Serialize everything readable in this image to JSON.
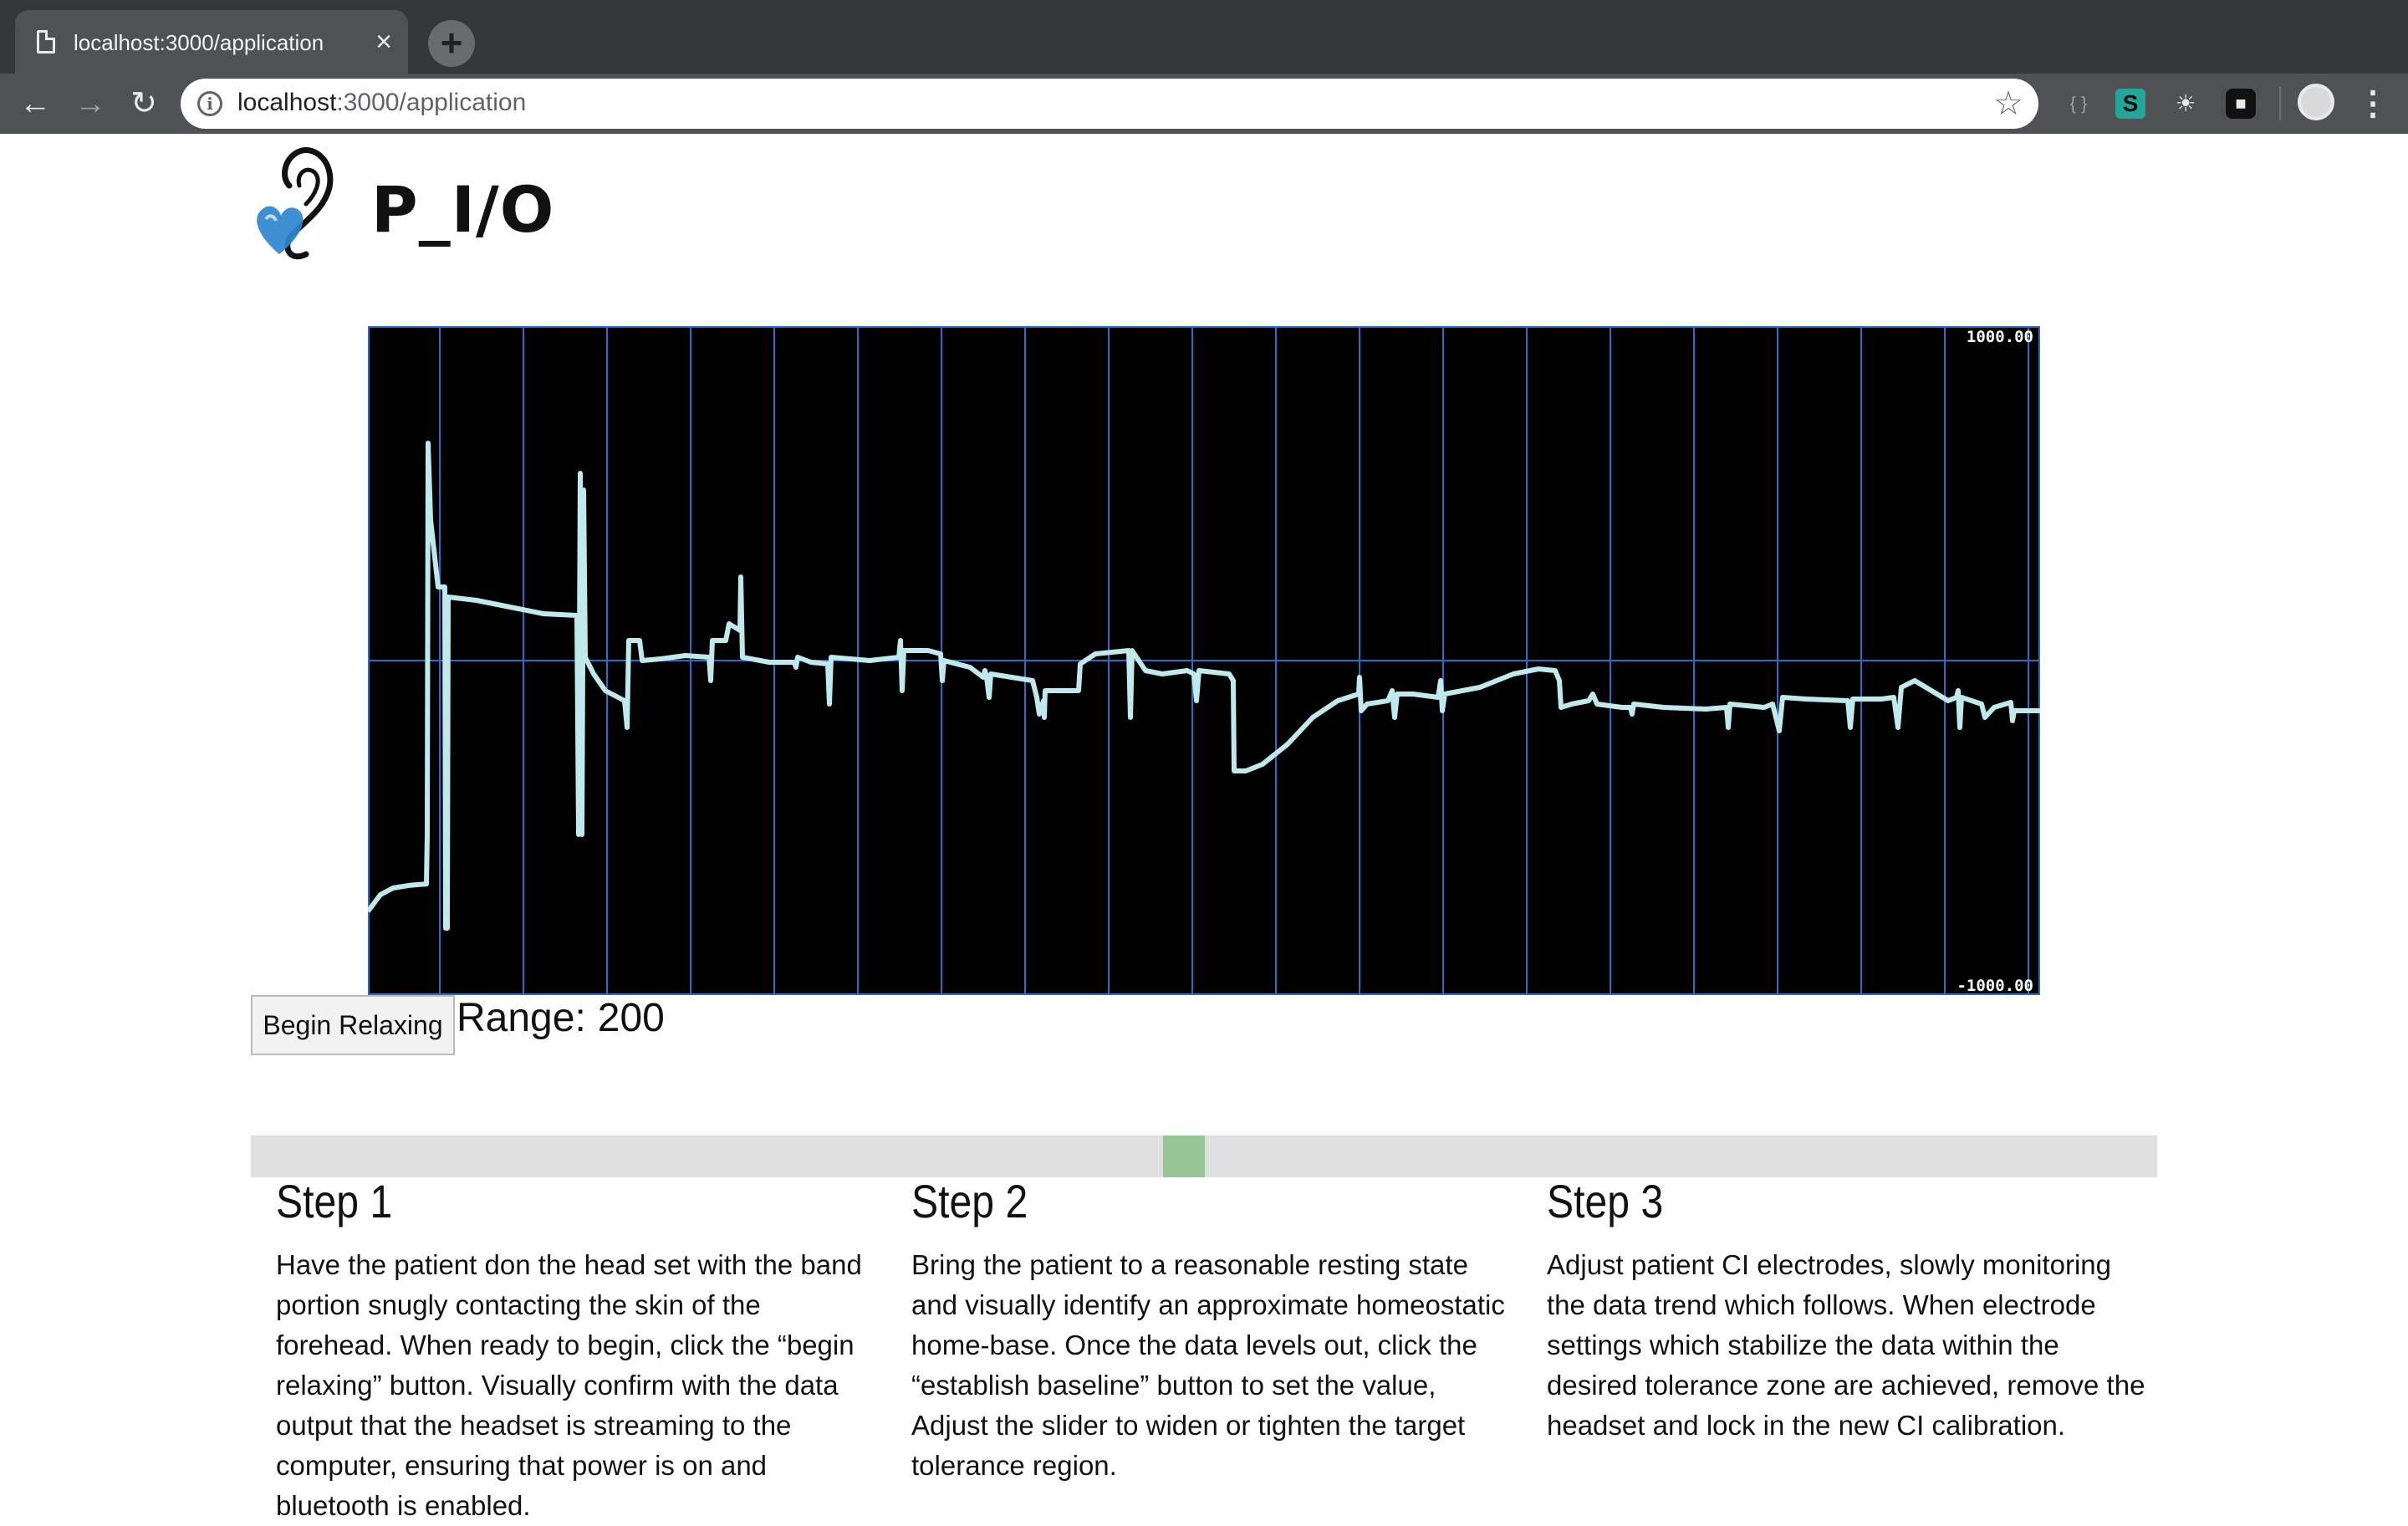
{
  "browser": {
    "tab_title": "localhost:3000/application",
    "url_host": "localhost",
    "url_path": ":3000/application",
    "icons": [
      "page-icon",
      "close-icon",
      "plus-icon",
      "back-icon",
      "forward-icon",
      "reload-icon",
      "info-icon",
      "star-icon",
      "braces-icon",
      "s-extension-icon",
      "bulb-icon",
      "lock-icon",
      "profile-avatar",
      "menu-dots-icon"
    ]
  },
  "logo": {
    "text": "P_I/O",
    "ear_color": "#111111",
    "heart_color": "#2f86cf"
  },
  "chart_data": {
    "type": "line",
    "ylim": [
      -1000,
      1000
    ],
    "ymax_label": "1000.00",
    "ymin_label": "-1000.00",
    "grid": true,
    "grid_color": "#2c6bc7",
    "line_color": "#bfe9ec",
    "background": "#000000",
    "x_range": [
      0,
      200
    ],
    "vertical_gridlines_x": [
      8.6,
      18.6,
      28.6,
      38.6,
      48.6,
      58.6,
      68.6,
      78.6,
      88.6,
      98.6,
      108.6,
      118.6,
      128.6,
      138.6,
      148.6,
      158.6,
      168.6,
      178.6,
      188.6,
      198.6
    ],
    "points": [
      [
        0,
        -750
      ],
      [
        1.5,
        -700
      ],
      [
        3,
        -680
      ],
      [
        5,
        -672
      ],
      [
        7,
        -668
      ],
      [
        7.1,
        -520
      ],
      [
        7.2,
        650
      ],
      [
        7.5,
        420
      ],
      [
        8.4,
        220
      ],
      [
        9.2,
        220
      ],
      [
        9.3,
        -800
      ],
      [
        9.5,
        -800
      ],
      [
        9.6,
        190
      ],
      [
        13,
        180
      ],
      [
        17,
        160
      ],
      [
        21,
        140
      ],
      [
        25,
        135
      ],
      [
        25.2,
        -520
      ],
      [
        25.4,
        560
      ],
      [
        25.6,
        -520
      ],
      [
        25.8,
        510
      ],
      [
        26,
        10
      ],
      [
        27,
        -40
      ],
      [
        28.4,
        -90
      ],
      [
        30.7,
        -120
      ],
      [
        31,
        -200
      ],
      [
        31.2,
        60
      ],
      [
        32.5,
        60
      ],
      [
        32.8,
        0
      ],
      [
        35,
        5
      ],
      [
        38,
        15
      ],
      [
        40.8,
        10
      ],
      [
        41,
        -60
      ],
      [
        41.2,
        60
      ],
      [
        42.8,
        60
      ],
      [
        43.2,
        110
      ],
      [
        44.5,
        90
      ],
      [
        44.6,
        250
      ],
      [
        44.8,
        10
      ],
      [
        48,
        -5
      ],
      [
        51,
        -5
      ],
      [
        51.2,
        -20
      ],
      [
        51.4,
        10
      ],
      [
        53,
        -5
      ],
      [
        55,
        -10
      ],
      [
        55.2,
        -130
      ],
      [
        55.4,
        10
      ],
      [
        60,
        0
      ],
      [
        63.5,
        10
      ],
      [
        63.7,
        60
      ],
      [
        63.9,
        -90
      ],
      [
        64.1,
        30
      ],
      [
        67,
        30
      ],
      [
        68.5,
        20
      ],
      [
        68.7,
        -60
      ],
      [
        68.9,
        0
      ],
      [
        72,
        -20
      ],
      [
        73.6,
        -50
      ],
      [
        73.8,
        -30
      ],
      [
        74,
        -50
      ],
      [
        74.3,
        -110
      ],
      [
        74.5,
        -40
      ],
      [
        77,
        -50
      ],
      [
        79.5,
        -60
      ],
      [
        80,
        -110
      ],
      [
        80.3,
        -160
      ],
      [
        80.8,
        -120
      ],
      [
        80.9,
        -170
      ],
      [
        81,
        -90
      ],
      [
        85,
        -90
      ],
      [
        85.2,
        -10
      ],
      [
        87,
        20
      ],
      [
        91,
        30
      ],
      [
        91.2,
        -170
      ],
      [
        91.4,
        30
      ],
      [
        93,
        -30
      ],
      [
        95,
        -40
      ],
      [
        98,
        -30
      ],
      [
        98.8,
        -40
      ],
      [
        99.1,
        -120
      ],
      [
        99.4,
        -30
      ],
      [
        103,
        -40
      ],
      [
        103.5,
        -60
      ],
      [
        103.6,
        -330
      ],
      [
        105,
        -330
      ],
      [
        107,
        -310
      ],
      [
        110,
        -250
      ],
      [
        113,
        -170
      ],
      [
        116,
        -120
      ],
      [
        118.5,
        -100
      ],
      [
        118.6,
        -50
      ],
      [
        118.8,
        -150
      ],
      [
        119.5,
        -130
      ],
      [
        122,
        -120
      ],
      [
        122.5,
        -90
      ],
      [
        122.8,
        -170
      ],
      [
        123.1,
        -100
      ],
      [
        125,
        -100
      ],
      [
        128,
        -110
      ],
      [
        128.3,
        -60
      ],
      [
        128.5,
        -150
      ],
      [
        128.8,
        -100
      ],
      [
        133,
        -80
      ],
      [
        137,
        -40
      ],
      [
        140,
        -25
      ],
      [
        142,
        -30
      ],
      [
        142.5,
        -60
      ],
      [
        142.7,
        -140
      ],
      [
        144,
        -130
      ],
      [
        146,
        -120
      ],
      [
        146.5,
        -100
      ],
      [
        147,
        -130
      ],
      [
        150,
        -140
      ],
      [
        151,
        -140
      ],
      [
        151.2,
        -160
      ],
      [
        151.4,
        -130
      ],
      [
        155,
        -140
      ],
      [
        160,
        -145
      ],
      [
        162.5,
        -140
      ],
      [
        162.7,
        -200
      ],
      [
        162.9,
        -130
      ],
      [
        167,
        -140
      ],
      [
        168,
        -130
      ],
      [
        168.5,
        -180
      ],
      [
        168.8,
        -210
      ],
      [
        169.2,
        -110
      ],
      [
        172,
        -115
      ],
      [
        177,
        -120
      ],
      [
        177.3,
        -200
      ],
      [
        177.6,
        -115
      ],
      [
        181,
        -115
      ],
      [
        182.5,
        -110
      ],
      [
        183,
        -200
      ],
      [
        183.4,
        -80
      ],
      [
        185,
        -60
      ],
      [
        187,
        -90
      ],
      [
        189,
        -120
      ],
      [
        190,
        -110
      ],
      [
        190.2,
        -90
      ],
      [
        190.4,
        -200
      ],
      [
        190.6,
        -110
      ],
      [
        193,
        -130
      ],
      [
        193.4,
        -170
      ],
      [
        194.5,
        -140
      ],
      [
        196.5,
        -125
      ],
      [
        196.7,
        -180
      ],
      [
        196.9,
        -150
      ],
      [
        200,
        -150
      ]
    ]
  },
  "controls": {
    "begin_button_label": "Begin Relaxing",
    "range_label": "Range:",
    "range_value": "200",
    "slider_value_fraction": 0.5,
    "slider_thumb_color": "#96c794"
  },
  "steps": [
    {
      "title": "Step 1",
      "body": "Have the patient don the head set with the band portion snugly contacting the skin of the forehead. When ready to begin, click the “begin relaxing” button. Visually confirm with the data output that the headset is streaming to the computer, ensuring that power is on and bluetooth is enabled."
    },
    {
      "title": "Step 2",
      "body": "Bring the patient to a reasonable resting state and visually identify an approximate homeostatic home-base. Once the data levels out, click the “establish baseline” button to set the value, Adjust the slider to widen or tighten the target tolerance region."
    },
    {
      "title": "Step 3",
      "body": "Adjust patient CI electrodes, slowly monitoring the data trend which follows. When electrode settings which stabilize the data within the desired tolerance zone are achieved, remove the headset and lock in the new CI calibration."
    }
  ]
}
